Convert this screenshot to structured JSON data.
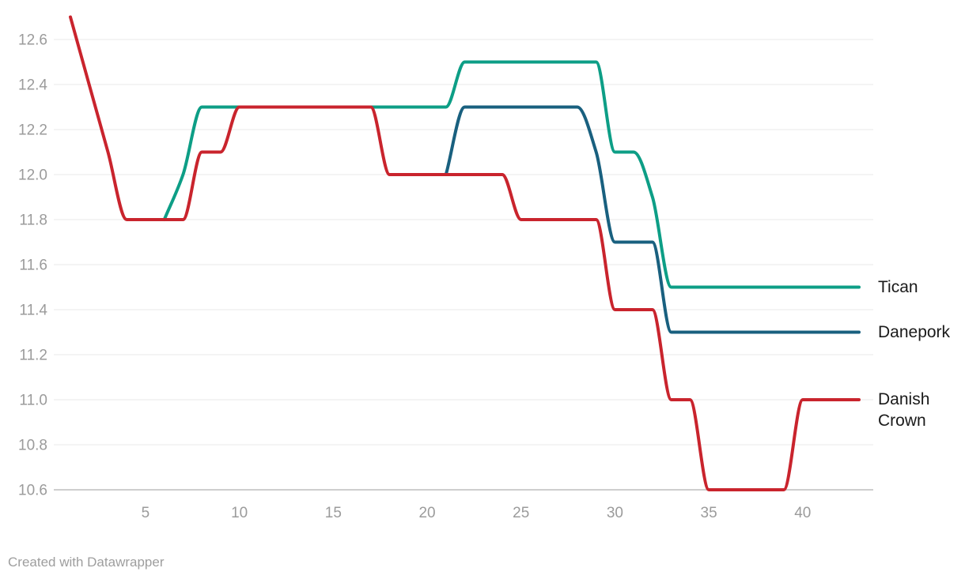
{
  "footer": {
    "text": "Created with Datawrapper"
  },
  "colors": {
    "grid": "#e8e8e8",
    "baseline": "#bdbdbd",
    "axis_text": "#9b9b9b",
    "series_label_text": "#1a1a1a",
    "footer_text": "#9e9e9e",
    "tican": "#0d9e86",
    "danepork": "#19607f",
    "danish_crown": "#c9242d"
  },
  "chart_data": {
    "type": "line",
    "title": "",
    "xlabel": "",
    "ylabel": "",
    "x_axis": {
      "unit": "week",
      "range": [
        1,
        43
      ],
      "tick_values": [
        5,
        10,
        15,
        20,
        25,
        30,
        35,
        40
      ],
      "tick_labels": [
        "5",
        "10",
        "15",
        "20",
        "25",
        "30",
        "35",
        "40"
      ]
    },
    "y_axis": {
      "min": 10.6,
      "max": 12.6,
      "step": 0.2,
      "tick_labels": [
        "12.6",
        "12.4",
        "12.2",
        "12.0",
        "11.8",
        "11.6",
        "11.4",
        "11.2",
        "11.0",
        "10.8",
        "10.6"
      ]
    },
    "grid": "horizontal",
    "legend_position": "right-end-labels",
    "line_width": 4,
    "interpolation": "monotone",
    "series": [
      {
        "name": "Tican",
        "color": "#0d9e86",
        "start_week": 6,
        "end_week": 43,
        "end_value": 11.5,
        "values": [
          11.8,
          12.0,
          12.3,
          12.3,
          12.3,
          12.3,
          12.3,
          12.3,
          12.3,
          12.3,
          12.3,
          12.3,
          12.3,
          12.3,
          12.3,
          12.3,
          12.5,
          12.5,
          12.5,
          12.5,
          12.5,
          12.5,
          12.5,
          12.5,
          12.1,
          12.1,
          11.9,
          11.5,
          11.5,
          11.5,
          11.5,
          11.5,
          11.5,
          11.5,
          11.5,
          11.5,
          11.5,
          11.5
        ]
      },
      {
        "name": "Danepork",
        "color": "#19607f",
        "start_week": 21,
        "end_week": 43,
        "end_value": 11.3,
        "values": [
          12.0,
          12.3,
          12.3,
          12.3,
          12.3,
          12.3,
          12.3,
          12.3,
          12.1,
          11.7,
          11.7,
          11.7,
          11.3,
          11.3,
          11.3,
          11.3,
          11.3,
          11.3,
          11.3,
          11.3,
          11.3,
          11.3,
          11.3
        ]
      },
      {
        "name": "Danish Crown",
        "color": "#c9242d",
        "start_week": 1,
        "end_week": 43,
        "end_value": 11.0,
        "values": [
          12.7,
          12.4,
          12.1,
          11.8,
          11.8,
          11.8,
          11.8,
          12.1,
          12.1,
          12.3,
          12.3,
          12.3,
          12.3,
          12.3,
          12.3,
          12.3,
          12.3,
          12.0,
          12.0,
          12.0,
          12.0,
          12.0,
          12.0,
          12.0,
          11.8,
          11.8,
          11.8,
          11.8,
          11.8,
          11.4,
          11.4,
          11.4,
          11.0,
          11.0,
          10.6,
          10.6,
          10.6,
          10.6,
          10.6,
          11.0,
          11.0,
          11.0,
          11.0
        ]
      }
    ]
  }
}
